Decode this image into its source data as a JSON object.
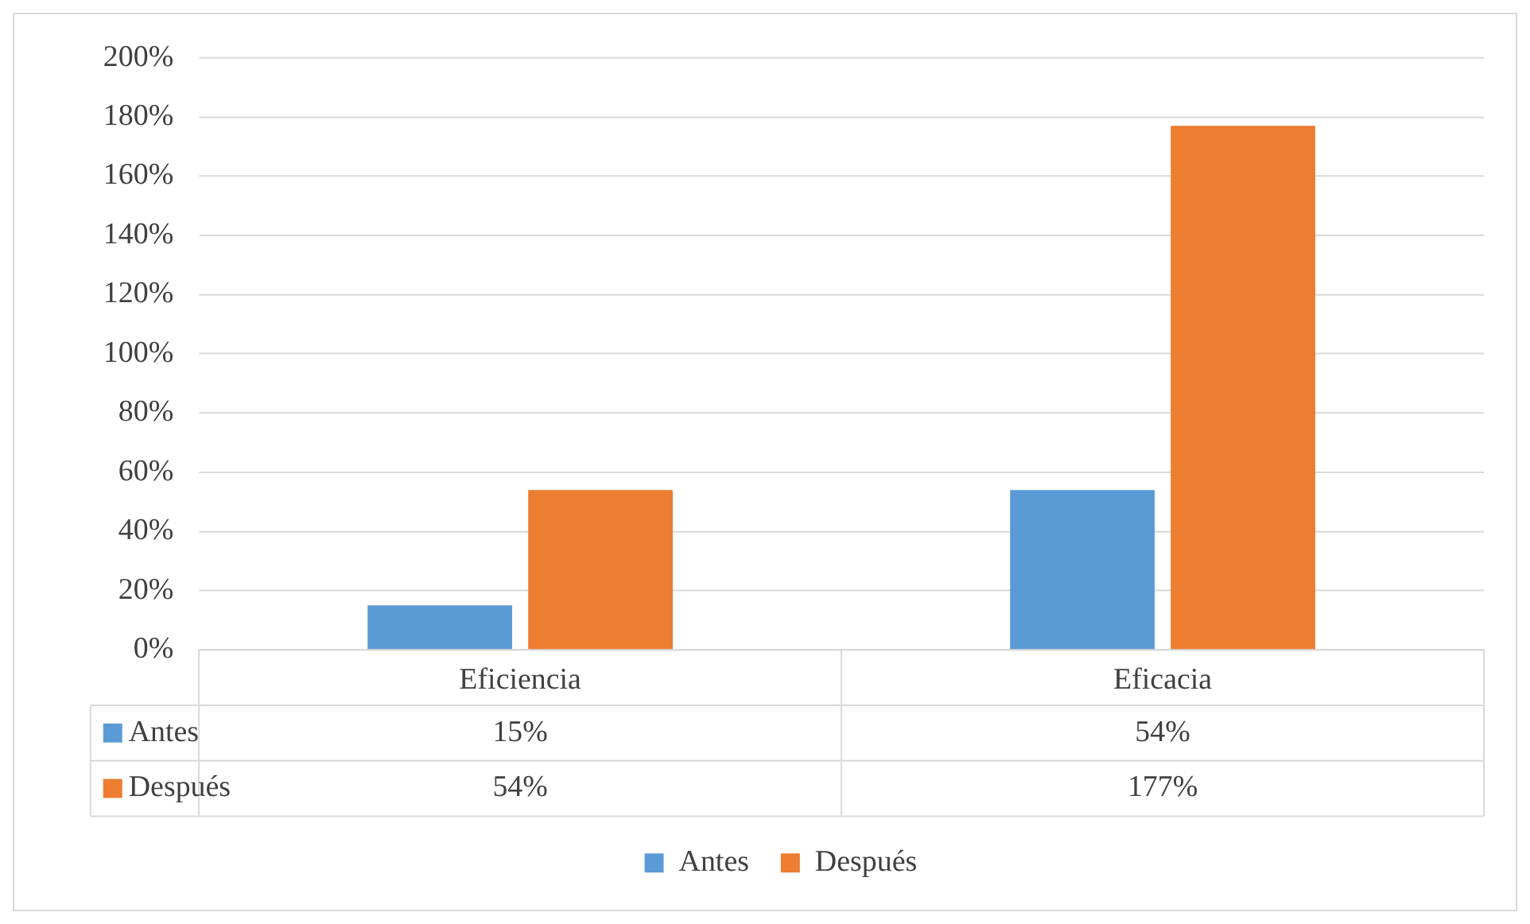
{
  "chart_data": {
    "type": "bar",
    "categories": [
      "Eficiencia",
      "Eficacia"
    ],
    "series": [
      {
        "name": "Antes",
        "color": "#5b9bd5",
        "values": [
          15,
          54
        ]
      },
      {
        "name": "Después",
        "color": "#ed7d31",
        "values": [
          54,
          177
        ]
      }
    ],
    "ylim": [
      0,
      200
    ],
    "yticks": [
      {
        "value": 0,
        "label": "0%"
      },
      {
        "value": 20,
        "label": "20%"
      },
      {
        "value": 40,
        "label": "40%"
      },
      {
        "value": 60,
        "label": "60%"
      },
      {
        "value": 80,
        "label": "80%"
      },
      {
        "value": 100,
        "label": "100%"
      },
      {
        "value": 120,
        "label": "120%"
      },
      {
        "value": 140,
        "label": "140%"
      },
      {
        "value": 160,
        "label": "160%"
      },
      {
        "value": 180,
        "label": "180%"
      },
      {
        "value": 200,
        "label": "200%"
      }
    ],
    "value_labels": [
      [
        "15%",
        "54%"
      ],
      [
        "54%",
        "177%"
      ]
    ],
    "grid": "y",
    "legend": "bottom"
  }
}
